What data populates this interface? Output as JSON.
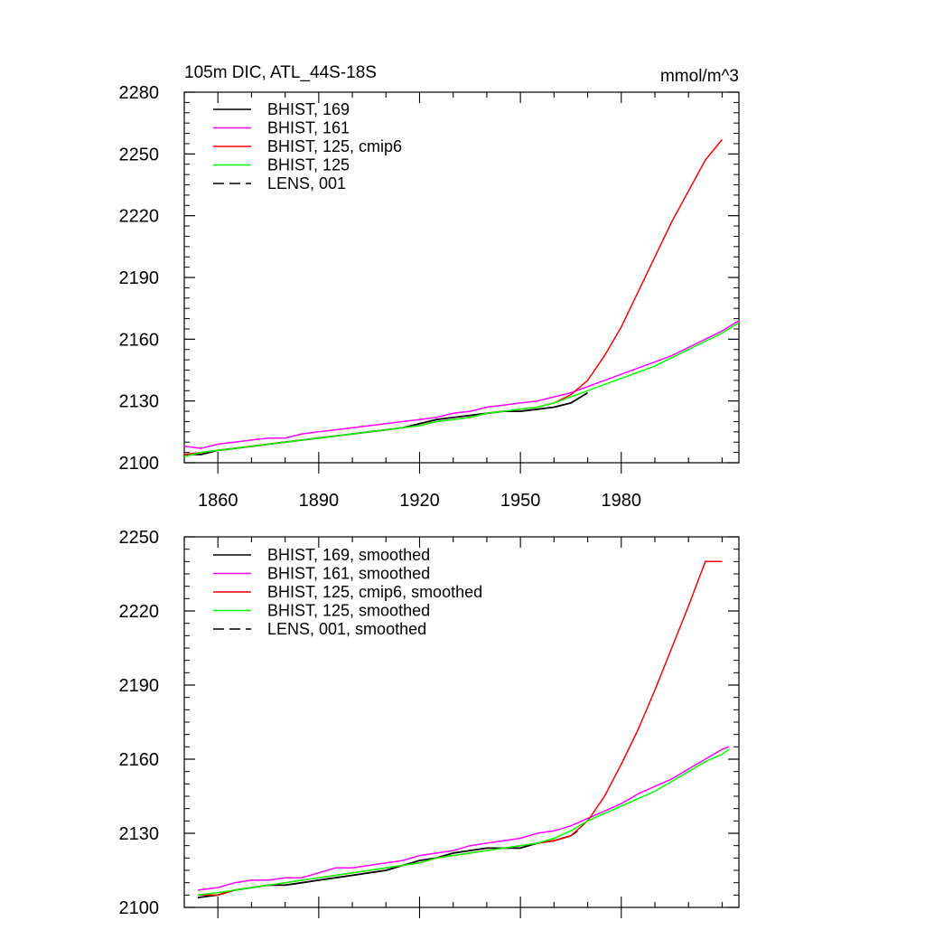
{
  "chart_data": [
    {
      "type": "line",
      "title": "105m DIC, ATL_44S-18S",
      "units": "mmol/m^3",
      "xlim": [
        1850,
        2015
      ],
      "ylim": [
        2100,
        2280
      ],
      "x_ticks": [
        1860,
        1890,
        1920,
        1950,
        1980
      ],
      "y_ticks": [
        2100,
        2130,
        2160,
        2190,
        2220,
        2250,
        2280
      ],
      "grid": false,
      "legend_position": "top-left",
      "series": [
        {
          "name": "BHIST, 169",
          "color": "#000000",
          "dash": "solid",
          "x": [
            1850,
            1855,
            1860,
            1865,
            1870,
            1875,
            1880,
            1885,
            1890,
            1895,
            1900,
            1905,
            1910,
            1915,
            1920,
            1925,
            1930,
            1935,
            1940,
            1945,
            1950,
            1955,
            1960,
            1965,
            1970
          ],
          "y": [
            2104,
            2104,
            2106,
            2107,
            2108,
            2109,
            2110,
            2111,
            2112,
            2113,
            2114,
            2115,
            2116,
            2117,
            2119,
            2121,
            2122,
            2123,
            2124,
            2125,
            2125,
            2126,
            2127,
            2129,
            2134
          ]
        },
        {
          "name": "BHIST, 161",
          "color": "#ff00ff",
          "dash": "solid",
          "x": [
            1850,
            1855,
            1860,
            1865,
            1870,
            1875,
            1880,
            1885,
            1890,
            1895,
            1900,
            1905,
            1910,
            1915,
            1920,
            1925,
            1930,
            1935,
            1940,
            1945,
            1950,
            1955,
            1960,
            1965,
            1970,
            1975,
            1980,
            1985,
            1990,
            1995,
            2000,
            2005,
            2010,
            2015
          ],
          "y": [
            2108,
            2107,
            2109,
            2110,
            2111,
            2112,
            2112,
            2114,
            2115,
            2116,
            2117,
            2118,
            2119,
            2120,
            2121,
            2122,
            2124,
            2125,
            2127,
            2128,
            2129,
            2130,
            2132,
            2134,
            2137,
            2140,
            2143,
            2146,
            2149,
            2152,
            2156,
            2160,
            2164,
            2169
          ]
        },
        {
          "name": "BHIST, 125, cmip6",
          "color": "#ff0000",
          "dash": "solid",
          "x": [
            1850,
            1855,
            1860,
            1865,
            1870,
            1875,
            1880,
            1885,
            1890,
            1895,
            1900,
            1905,
            1910,
            1915,
            1920,
            1925,
            1930,
            1935,
            1940,
            1945,
            1950,
            1955,
            1960,
            1965,
            1970,
            1975,
            1980,
            1985,
            1990,
            1995,
            2000,
            2005,
            2010
          ],
          "y": [
            2104,
            2105,
            2106,
            2107,
            2108,
            2109,
            2110,
            2111,
            2112,
            2113,
            2114,
            2115,
            2116,
            2117,
            2118,
            2120,
            2121,
            2122,
            2124,
            2125,
            2126,
            2127,
            2129,
            2133,
            2140,
            2152,
            2166,
            2183,
            2200,
            2217,
            2232,
            2247,
            2257
          ]
        },
        {
          "name": "BHIST, 125",
          "color": "#00ff00",
          "dash": "solid",
          "x": [
            1850,
            1855,
            1860,
            1865,
            1870,
            1875,
            1880,
            1885,
            1890,
            1895,
            1900,
            1905,
            1910,
            1915,
            1920,
            1925,
            1930,
            1935,
            1940,
            1945,
            1950,
            1955,
            1960,
            1965,
            1970,
            1975,
            1980,
            1985,
            1990,
            1995,
            2000,
            2005,
            2010,
            2015
          ],
          "y": [
            2103,
            2105,
            2106,
            2107,
            2108,
            2109,
            2110,
            2111,
            2112,
            2113,
            2114,
            2115,
            2116,
            2117,
            2118,
            2120,
            2121,
            2122,
            2124,
            2125,
            2126,
            2127,
            2129,
            2132,
            2135,
            2138,
            2141,
            2144,
            2147,
            2151,
            2155,
            2159,
            2163,
            2168
          ]
        },
        {
          "name": "LENS, 001",
          "color": "#000000",
          "dash": "dashed",
          "x": [],
          "y": []
        }
      ]
    },
    {
      "type": "line",
      "title": "",
      "xlim": [
        1850,
        2015
      ],
      "ylim": [
        2100,
        2250
      ],
      "x_ticks": [
        1860,
        1890,
        1920,
        1950,
        1980
      ],
      "y_ticks": [
        2100,
        2130,
        2160,
        2190,
        2220,
        2250
      ],
      "grid": false,
      "legend_position": "top-left",
      "series": [
        {
          "name": "BHIST, 169, smoothed",
          "color": "#000000",
          "dash": "solid",
          "x": [
            1854,
            1860,
            1865,
            1870,
            1875,
            1880,
            1885,
            1890,
            1895,
            1900,
            1905,
            1910,
            1915,
            1920,
            1925,
            1930,
            1935,
            1940,
            1945,
            1950,
            1955,
            1960,
            1965,
            1967
          ],
          "y": [
            2104,
            2105,
            2107,
            2108,
            2109,
            2109,
            2110,
            2111,
            2112,
            2113,
            2114,
            2115,
            2117,
            2119,
            2120,
            2122,
            2123,
            2124,
            2124,
            2124,
            2126,
            2127,
            2129,
            2131
          ]
        },
        {
          "name": "BHIST, 161, smoothed",
          "color": "#ff00ff",
          "dash": "solid",
          "x": [
            1854,
            1860,
            1865,
            1870,
            1875,
            1880,
            1885,
            1890,
            1895,
            1900,
            1905,
            1910,
            1915,
            1920,
            1925,
            1930,
            1935,
            1940,
            1945,
            1950,
            1955,
            1960,
            1965,
            1970,
            1975,
            1980,
            1985,
            1990,
            1995,
            2000,
            2005,
            2010,
            2012
          ],
          "y": [
            2107,
            2108,
            2110,
            2111,
            2111,
            2112,
            2112,
            2114,
            2116,
            2116,
            2117,
            2118,
            2119,
            2121,
            2122,
            2123,
            2125,
            2126,
            2127,
            2128,
            2130,
            2131,
            2133,
            2136,
            2139,
            2142,
            2146,
            2149,
            2152,
            2156,
            2160,
            2164,
            2165
          ]
        },
        {
          "name": "BHIST, 125, cmip6, smoothed",
          "color": "#ff0000",
          "dash": "solid",
          "x": [
            1854,
            1860,
            1865,
            1870,
            1875,
            1880,
            1885,
            1890,
            1895,
            1900,
            1905,
            1910,
            1915,
            1920,
            1925,
            1930,
            1935,
            1940,
            1945,
            1950,
            1955,
            1960,
            1965,
            1970,
            1975,
            1980,
            1985,
            1990,
            1995,
            2000,
            2005,
            2010
          ],
          "y": [
            2105,
            2105,
            2107,
            2108,
            2109,
            2110,
            2111,
            2112,
            2113,
            2114,
            2115,
            2116,
            2117,
            2118,
            2120,
            2121,
            2122,
            2123,
            2124,
            2125,
            2126,
            2127,
            2129,
            2135,
            2145,
            2158,
            2172,
            2188,
            2205,
            2222,
            2240,
            2240
          ]
        },
        {
          "name": "BHIST, 125, smoothed",
          "color": "#00ff00",
          "dash": "solid",
          "x": [
            1854,
            1860,
            1865,
            1870,
            1875,
            1880,
            1885,
            1890,
            1895,
            1900,
            1905,
            1910,
            1915,
            1920,
            1925,
            1930,
            1935,
            1940,
            1945,
            1950,
            1955,
            1960,
            1965,
            1970,
            1975,
            1980,
            1985,
            1990,
            1995,
            2000,
            2005,
            2010,
            2012
          ],
          "y": [
            2105,
            2106,
            2107,
            2108,
            2109,
            2110,
            2111,
            2112,
            2113,
            2114,
            2115,
            2116,
            2117,
            2118,
            2120,
            2121,
            2122,
            2123,
            2124,
            2125,
            2126,
            2128,
            2131,
            2135,
            2138,
            2141,
            2144,
            2147,
            2151,
            2155,
            2159,
            2162,
            2164
          ]
        },
        {
          "name": "LENS, 001, smoothed",
          "color": "#000000",
          "dash": "dashed",
          "x": [],
          "y": []
        }
      ]
    }
  ]
}
